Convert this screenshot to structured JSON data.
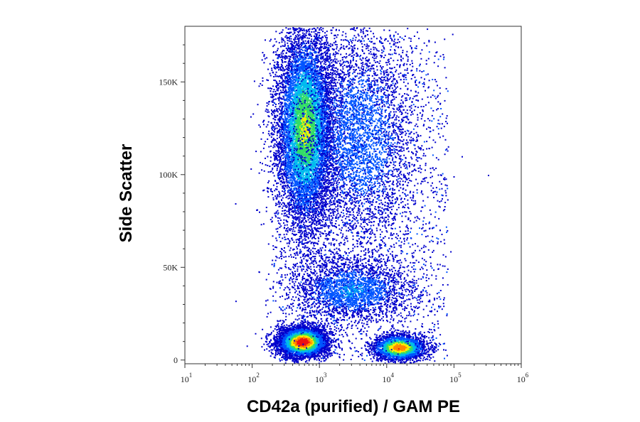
{
  "chart_data": {
    "type": "scatter",
    "subtype": "flow-cytometry-density-dot-plot",
    "xlabel": "CD42a (purified) / GAM PE",
    "ylabel": "Side Scatter",
    "x_scale": "log",
    "xlim": [
      10,
      1000000
    ],
    "ylim": [
      -2000,
      180000
    ],
    "x_ticks": [
      {
        "base": "10",
        "exp": "1"
      },
      {
        "base": "10",
        "exp": "2"
      },
      {
        "base": "10",
        "exp": "3"
      },
      {
        "base": "10",
        "exp": "4"
      },
      {
        "base": "10",
        "exp": "5"
      },
      {
        "base": "10",
        "exp": "6"
      }
    ],
    "y_ticks": [
      {
        "value": 0,
        "label": "0"
      },
      {
        "value": 50000,
        "label": "50K"
      },
      {
        "value": 100000,
        "label": "100K"
      },
      {
        "value": 150000,
        "label": "150K"
      }
    ],
    "color_scale": [
      "#0000cc",
      "#0055ff",
      "#00bbee",
      "#33dd66",
      "#ffee00",
      "#ff8800",
      "#ee1111"
    ],
    "populations": [
      {
        "name": "upper-band",
        "x_center": 600,
        "x_spread_decades": 0.22,
        "y_center": 125000,
        "y_spread": 28000,
        "count": 9000,
        "peak_density": 0.55
      },
      {
        "name": "upper-band-tail",
        "x_center": 4000,
        "x_spread_decades": 0.45,
        "y_center": 120000,
        "y_spread": 32000,
        "count": 4200,
        "peak_density": 0.2
      },
      {
        "name": "middle-cluster",
        "x_center": 3000,
        "x_spread_decades": 0.45,
        "y_center": 38000,
        "y_spread": 9000,
        "count": 2600,
        "peak_density": 0.25
      },
      {
        "name": "low-left-cluster",
        "x_center": 550,
        "x_spread_decades": 0.18,
        "y_center": 10000,
        "y_spread": 4000,
        "count": 5500,
        "peak_density": 1.0
      },
      {
        "name": "low-right-cluster",
        "x_center": 15000,
        "x_spread_decades": 0.2,
        "y_center": 7000,
        "y_spread": 3500,
        "count": 2600,
        "peak_density": 0.8
      }
    ]
  }
}
